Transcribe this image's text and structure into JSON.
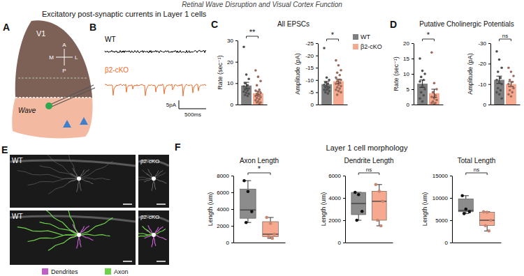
{
  "title": "Retinal Wave Disruption and Visual Cortex Function",
  "panel_letters": [
    "A",
    "B",
    "C",
    "D",
    "E",
    "F"
  ],
  "panel_a": {
    "header": "Excitatory post-synaptic currents in Layer 1 cells",
    "region": "V1",
    "compass": [
      "A",
      "P",
      "M",
      "L"
    ],
    "label": "Wave"
  },
  "panel_b": {
    "traces": [
      {
        "label": "WT",
        "color": "#000000"
      },
      {
        "label": "β2-cKO",
        "color": "#f26b2a"
      }
    ],
    "scale_bar": [
      "5pA",
      "500ms"
    ]
  },
  "panel_titles": [
    "All EPSCs",
    "Putative Cholinergic Potentials",
    "Layer 1 cell morphology"
  ],
  "panel_e": {
    "images": [
      "WT",
      "β2-cKO",
      "WT",
      "β2-cKO"
    ],
    "legend": [
      {
        "name": "Dendrites",
        "color": "#c05fc7"
      },
      {
        "name": "Axon",
        "color": "#6fd14a"
      }
    ]
  },
  "chart_data": [
    {
      "type": "bar",
      "y_label": "Rate (sec⁻¹)",
      "categories": [
        null
      ],
      "ylim": [
        0,
        30
      ],
      "yticks": [
        0,
        10,
        20,
        30
      ],
      "annotation": "**",
      "series": [
        {
          "color": "#7f7f7f",
          "values": [
            8.9
          ],
          "error": [
            1.5
          ],
          "points": [
            27,
            14,
            12,
            10,
            9,
            8.5,
            8,
            7.5,
            7,
            6.5,
            6,
            5.5,
            5,
            4.5,
            4
          ]
        },
        {
          "color": "#f6a98f",
          "values": [
            5.3
          ],
          "error": [
            0.9
          ],
          "points": [
            16,
            13,
            11,
            9,
            7,
            6.5,
            6,
            5.5,
            5,
            4.5,
            4,
            4,
            3.5,
            3,
            2.5,
            2,
            1.5,
            1,
            1,
            0.5
          ]
        }
      ]
    },
    {
      "type": "bar",
      "y_label": "Amplitude (pA)",
      "categories": [
        null
      ],
      "ylim": [
        0,
        -25
      ],
      "yticks": [
        0,
        -5,
        -10,
        -15,
        -20,
        -25
      ],
      "annotation": "*",
      "legend": "top-right",
      "series": [
        {
          "name": "WT",
          "color": "#7f7f7f",
          "values": [
            -8.3
          ],
          "error": [
            1.1
          ],
          "points": [
            -23,
            -11,
            -10,
            -9,
            -8.5,
            -8,
            -7.5,
            -7,
            -7,
            -6.5,
            -6,
            -6,
            -5.5,
            -5,
            -4.5
          ]
        },
        {
          "name": "β2-cKO",
          "color": "#f6a98f",
          "values": [
            -9.5
          ],
          "error": [
            0.9
          ],
          "points": [
            -18,
            -16,
            -14,
            -13,
            -12,
            -11,
            -10,
            -10,
            -9.5,
            -9,
            -8.5,
            -8,
            -7.5,
            -7,
            -6.5,
            -6,
            -5.5,
            -5,
            -4
          ]
        }
      ]
    },
    {
      "type": "bar",
      "y_label": "Rate (sec⁻¹)",
      "categories": [
        null
      ],
      "ylim": [
        0,
        20
      ],
      "yticks": [
        0,
        5,
        10,
        15,
        20
      ],
      "annotation": "*",
      "series": [
        {
          "color": "#7f7f7f",
          "values": [
            6.8
          ],
          "error": [
            1.2
          ],
          "points": [
            15,
            11,
            10,
            9,
            8,
            7.5,
            6,
            5,
            4,
            3,
            2,
            1
          ]
        },
        {
          "color": "#f6a98f",
          "values": [
            3.7
          ],
          "error": [
            1.3
          ],
          "points": [
            17,
            7,
            5,
            4,
            3,
            2.5,
            2,
            1.5,
            1,
            0.5,
            0.5,
            0.3
          ]
        }
      ]
    },
    {
      "type": "bar",
      "y_label": "Amplitude (pA)",
      "categories": [
        null
      ],
      "ylim": [
        0,
        -30
      ],
      "yticks": [
        0,
        -10,
        -20,
        -30
      ],
      "annotation": "ns",
      "series": [
        {
          "color": "#7f7f7f",
          "values": [
            -12.1
          ],
          "error": [
            1.8
          ],
          "points": [
            -26,
            -22,
            -18,
            -16,
            -13,
            -12,
            -11,
            -10,
            -8,
            -7,
            -6,
            -5,
            -3
          ]
        },
        {
          "color": "#f6a98f",
          "values": [
            -10
          ],
          "error": [
            1.2
          ],
          "points": [
            -18,
            -16,
            -14,
            -12,
            -11,
            -10,
            -9,
            -8,
            -7,
            -6,
            -5,
            -4
          ]
        }
      ]
    },
    {
      "type": "box",
      "title": "Axon Length",
      "y_label": "Length (um)",
      "categories": [
        null,
        null
      ],
      "colors": [
        "#8c8c8c",
        "#f6a98f"
      ],
      "min": [
        2400,
        500
      ],
      "q1": [
        2900,
        700
      ],
      "median": [
        3900,
        1000
      ],
      "q3": [
        6400,
        2500
      ],
      "max": [
        7400,
        3000
      ],
      "points": [
        [
          7400,
          6100,
          3700,
          2400
        ],
        [
          3000,
          2300,
          1000,
          700,
          500
        ]
      ],
      "ylim": [
        0,
        8000
      ],
      "yticks": [
        0,
        2000,
        4000,
        6000,
        8000
      ],
      "annotation": "*"
    },
    {
      "type": "box",
      "title": "Dendrite Length",
      "y_label": "Length (um)",
      "categories": [
        null,
        null
      ],
      "colors": [
        "#8c8c8c",
        "#f6a98f"
      ],
      "min": [
        2000,
        1500
      ],
      "q1": [
        2500,
        2000
      ],
      "median": [
        3500,
        3700
      ],
      "q3": [
        4500,
        4600
      ],
      "max": [
        4500,
        5200
      ],
      "points": [
        [
          4500,
          4300,
          2800,
          2000
        ],
        [
          5200,
          4600,
          3700,
          2000,
          1500
        ]
      ],
      "ylim": [
        0,
        6000
      ],
      "yticks": [
        0,
        2000,
        4000,
        6000
      ],
      "annotation": "ns"
    },
    {
      "type": "box",
      "title": "Total Length",
      "y_label": "Length (um)",
      "categories": [
        null,
        null
      ],
      "colors": [
        "#8c8c8c",
        "#f6a98f"
      ],
      "min": [
        6500,
        2600
      ],
      "q1": [
        6900,
        3800
      ],
      "median": [
        7200,
        5000
      ],
      "q3": [
        9800,
        6800
      ],
      "max": [
        10500,
        6900
      ],
      "points": [
        [
          10500,
          7500,
          6900,
          6500
        ],
        [
          6900,
          6800,
          5000,
          3800,
          2600
        ]
      ],
      "ylim": [
        0,
        15000
      ],
      "yticks": [
        0,
        5000,
        10000,
        15000
      ],
      "annotation": "ns"
    }
  ]
}
